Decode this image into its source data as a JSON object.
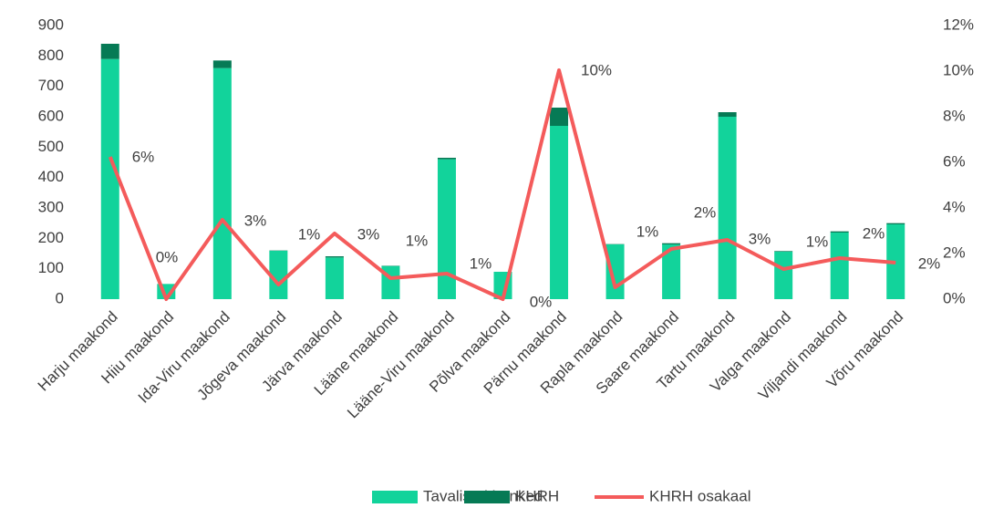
{
  "chart_data": {
    "type": "bar-line",
    "categories": [
      "Harju maakond",
      "Hiiu maakond",
      "Ida-Viru maakond",
      "Jõgeva maakond",
      "Järva maakond",
      "Lääne maakond",
      "Lääne-Viru maakond",
      "Põlva maakond",
      "Pärnu maakond",
      "Rapla maakond",
      "Saare maakond",
      "Tartu maakond",
      "Valga maakond",
      "Viljandi maakond",
      "Võru maakond"
    ],
    "series": [
      {
        "name": "Tavalised hanked",
        "type": "bar",
        "stacked": true,
        "color": "#12d39b",
        "values": [
          790,
          50,
          760,
          159,
          137,
          109,
          460,
          90,
          570,
          180,
          180,
          600,
          156,
          219,
          246
        ]
      },
      {
        "name": "KHRH",
        "type": "bar",
        "stacked": true,
        "color": "#067a55",
        "values": [
          50,
          0,
          25,
          1,
          4,
          1,
          5,
          0,
          60,
          1,
          4,
          15,
          2,
          4,
          4
        ]
      },
      {
        "name": "KHRH osakaal",
        "type": "line",
        "axis": "y2",
        "color": "#f45b5b",
        "values": [
          6.24,
          0,
          3.48,
          0.64,
          2.88,
          0.92,
          1.12,
          0,
          10.04,
          0.52,
          2.2,
          2.6,
          1.32,
          1.8,
          1.6
        ],
        "value_labels": [
          "6%",
          "0%",
          "3%",
          "1%",
          "3%",
          "1%",
          "1%",
          "0%",
          "10%",
          "1%",
          "2%",
          "3%",
          "1%",
          "2%",
          "2%"
        ]
      }
    ],
    "ylim": [
      0,
      900
    ],
    "yticks": [
      0,
      100,
      200,
      300,
      400,
      500,
      600,
      700,
      800,
      900
    ],
    "y2lim": [
      0,
      12
    ],
    "y2ticks": [
      {
        "value": 0,
        "label": "0%"
      },
      {
        "value": 2,
        "label": "2%"
      },
      {
        "value": 4,
        "label": "4%"
      },
      {
        "value": 6,
        "label": "6%"
      },
      {
        "value": 8,
        "label": "8%"
      },
      {
        "value": 10,
        "label": "10%"
      },
      {
        "value": 12,
        "label": "12%"
      }
    ],
    "grid": false,
    "legend": "bottom"
  }
}
